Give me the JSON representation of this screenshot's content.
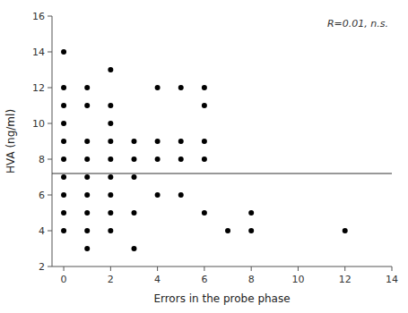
{
  "chart_data": {
    "type": "scatter",
    "xlabel": "Errors in the probe phase",
    "ylabel": "HVA (ng/ml)",
    "annotation": "R=0.01, n.s.",
    "x": [
      0,
      0,
      0,
      0,
      0,
      0,
      0,
      0,
      0,
      0,
      1,
      1,
      1,
      1,
      1,
      1,
      1,
      1,
      1,
      2,
      2,
      2,
      2,
      2,
      2,
      2,
      2,
      2,
      3,
      3,
      3,
      3,
      3,
      4,
      4,
      4,
      4,
      5,
      5,
      5,
      5,
      6,
      6,
      6,
      6,
      6,
      7,
      8,
      8,
      12
    ],
    "values": [
      14,
      12,
      11,
      10,
      9,
      8,
      7,
      6,
      5,
      4,
      3,
      12,
      11,
      9,
      8,
      7,
      6,
      5,
      4,
      13,
      11,
      10,
      9,
      8,
      7,
      6,
      5,
      4,
      9,
      8,
      7,
      5,
      3,
      12,
      9,
      8,
      6,
      12,
      9,
      8,
      6,
      5,
      12,
      11,
      9,
      8,
      4,
      5,
      4,
      4
    ],
    "color": "#000000",
    "reference_line": {
      "y": 7.2,
      "color": "#333333"
    },
    "xlim": [
      -0.5,
      14
    ],
    "ylim": [
      2,
      16
    ],
    "xticks": [
      0,
      2,
      4,
      6,
      8,
      10,
      12,
      14
    ],
    "yticks": [
      2,
      4,
      6,
      8,
      10,
      12,
      14,
      16
    ],
    "grid": false
  }
}
